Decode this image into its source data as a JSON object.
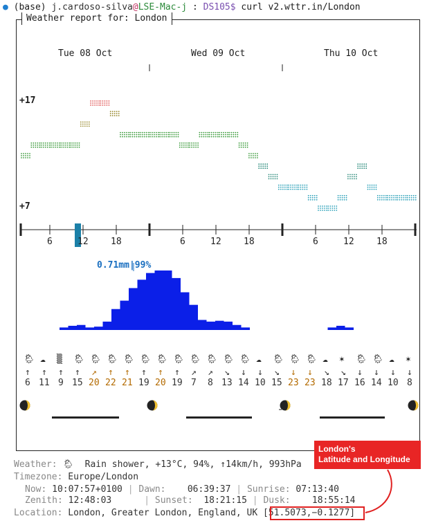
{
  "prompt": {
    "env": "(base)",
    "user": "j.cardoso-silva",
    "at": "@",
    "host": "LSE-Mac-j",
    "sep": " : ",
    "dir": "DS105$",
    "command": "curl v2.wttr.in/London"
  },
  "report_title": "Weather report for: London",
  "days": [
    "Tue 08 Oct",
    "Wed 09 Oct",
    "Thu 10 Oct"
  ],
  "temp_axis": {
    "max": "+17",
    "min": "+7"
  },
  "hour_ticks": [
    "6",
    "12",
    "18",
    "6",
    "12",
    "18",
    "6",
    "12",
    "18"
  ],
  "precip_summary": "0.71mm|99%",
  "chart_data": [
    {
      "type": "line",
      "series": [
        {
          "values": [
            12,
            13,
            13,
            13,
            13,
            13,
            15,
            17,
            17,
            16,
            14,
            14,
            14,
            14,
            14,
            14,
            13,
            13,
            14,
            14,
            14,
            14,
            13,
            12,
            11,
            10,
            9,
            9,
            9,
            8,
            7,
            7,
            8,
            10,
            11,
            9,
            8,
            8,
            8,
            8
          ]
        }
      ],
      "ylim": [
        7,
        17
      ],
      "yticks": [
        "+17",
        "+7"
      ]
    },
    {
      "type": "bar",
      "title": "0.71mm|99%",
      "values": [
        0.03,
        0.05,
        0.06,
        0.03,
        0.04,
        0.1,
        0.25,
        0.35,
        0.5,
        0.6,
        0.68,
        0.71,
        0.71,
        0.62,
        0.45,
        0.3,
        0.12,
        0.1,
        0.11,
        0.1,
        0.06,
        0.03,
        0,
        0,
        0,
        0,
        0,
        0,
        0,
        0,
        0,
        0.03,
        0.05,
        0.03,
        0,
        0,
        0,
        0,
        0,
        0
      ]
    }
  ],
  "weather_icons": [
    "rain-shower",
    "cloudy",
    "fog",
    "rain-shower",
    "rain-shower",
    "rain-shower",
    "rain-shower",
    "rain-shower",
    "rain-shower",
    "rain-shower",
    "rain-shower",
    "rain-shower",
    "rain-shower",
    "rain-shower",
    "cloudy-night",
    "rain-shower",
    "rain-shower",
    "rain-shower",
    "cloudy",
    "clear-night",
    "rain-shower",
    "rain-shower",
    "cloudy-night",
    "clear-night"
  ],
  "wind_arrows": [
    "↑",
    "↑",
    "↑",
    "↑",
    "↗",
    "↑",
    "↑",
    "↑",
    "↑",
    "↑",
    "↗",
    "↗",
    "↘",
    "↓",
    "↓",
    "↘",
    "↓",
    "↓",
    "↘",
    "↘",
    "↓",
    "↓",
    "↓",
    "↓"
  ],
  "wind_speeds": [
    "6",
    "11",
    "9",
    "15",
    "20",
    "22",
    "21",
    "19",
    "20",
    "19",
    "7",
    "8",
    "13",
    "14",
    "10",
    "15",
    "23",
    "23",
    "18",
    "17",
    "16",
    "14",
    "10",
    "8"
  ],
  "warm_indices": [
    4,
    5,
    6,
    8,
    16,
    17
  ],
  "moon_icons": [
    "moon-phase",
    "moon-phase",
    "moon-phase",
    "moon-phase"
  ],
  "weather": {
    "label": "Weather:",
    "icon": "rain-shower",
    "text": "Rain shower, +13°C, 94%, ↑14km/h, 993hPa"
  },
  "timezone": {
    "label": "Timezone:",
    "value": "Europe/London"
  },
  "now": {
    "label": "Now:",
    "value": "10:07:57+0100"
  },
  "dawn": {
    "label": "Dawn:",
    "value": "06:39:37"
  },
  "sunrise": {
    "label": "Sunrise:",
    "value": "07:13:40"
  },
  "zenith": {
    "label": "Zenith:",
    "value": "12:48:03"
  },
  "sunset": {
    "label": "Sunset:",
    "value": "18:21:15"
  },
  "dusk": {
    "label": "Dusk:",
    "value": "18:55:14"
  },
  "location": {
    "label": "Location:",
    "value": "London, Greater London, England, UK",
    "coords": "[51.5073,−0.1277]"
  },
  "callout": {
    "line1": "London's",
    "line2": "Latitude and Longitude"
  },
  "colors": {
    "accent": "#0b1fe8",
    "callout": "#e82525",
    "precip_text": "#1a6fc0"
  }
}
